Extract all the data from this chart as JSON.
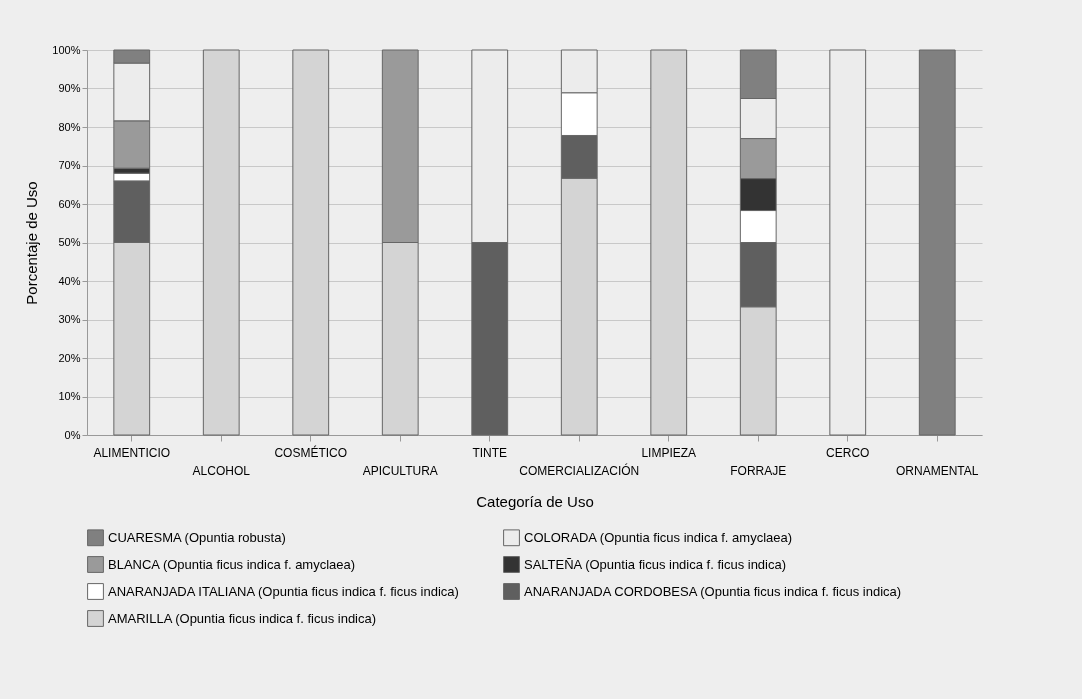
{
  "chart_data": {
    "type": "bar",
    "stacked": true,
    "xlabel": "Categoría de Uso",
    "ylabel": "Porcentaje de Uso",
    "categories": [
      "ALIMENTICIO",
      "ALCOHOL",
      "COSMÉTICO",
      "APICULTURA",
      "TINTE",
      "COMERCIALIZACIÓN",
      "LIMPIEZA",
      "FORRAJE",
      "CERCO",
      "ORNAMENTAL"
    ],
    "ylim": [
      0,
      100
    ],
    "yticks": [
      {
        "value": 0,
        "label": "0%"
      },
      {
        "value": 10,
        "label": "10%"
      },
      {
        "value": 20,
        "label": "20%"
      },
      {
        "value": 30,
        "label": "30%"
      },
      {
        "value": 40,
        "label": "40%"
      },
      {
        "value": 50,
        "label": "50%"
      },
      {
        "value": 60,
        "label": "60%"
      },
      {
        "value": 70,
        "label": "70%"
      },
      {
        "value": 80,
        "label": "80%"
      },
      {
        "value": 90,
        "label": "90%"
      },
      {
        "value": 100,
        "label": "100%"
      }
    ],
    "grid": "y",
    "legend": "bottom",
    "series": [
      {
        "name": "AMARILLA (Opuntia ficus indica f. ficus indica)",
        "color": "#d4d4d4",
        "values": [
          50,
          100,
          100,
          50,
          0,
          66.7,
          100,
          33.3,
          0,
          0
        ]
      },
      {
        "name": "ANARANJADA CORDOBESA (Opuntia ficus indica f. ficus indica)",
        "color": "#5f5f5f",
        "values": [
          16,
          0,
          0,
          0,
          50,
          11.1,
          0,
          16.7,
          0,
          0
        ]
      },
      {
        "name": "ANARANJADA ITALIANA (Opuntia ficus indica f. ficus indica)",
        "color": "#ffffff",
        "values": [
          2,
          0,
          0,
          0,
          0,
          11.1,
          0,
          8.3,
          0,
          0
        ]
      },
      {
        "name": "SALTEÑA (Opuntia ficus indica f. ficus indica)",
        "color": "#333333",
        "values": [
          1.3,
          0,
          0,
          0,
          0,
          0,
          0,
          8.3,
          0,
          0
        ]
      },
      {
        "name": "BLANCA (Opuntia ficus indica f. amyclaea)",
        "color": "#9a9a9a",
        "values": [
          12.3,
          0,
          0,
          50,
          0,
          0,
          0,
          10.4,
          0,
          0
        ]
      },
      {
        "name": "COLORADA (Opuntia ficus indica f. amyclaea)",
        "color": "#ececec",
        "values": [
          15,
          0,
          0,
          0,
          50,
          11.1,
          0,
          10.4,
          100,
          0
        ]
      },
      {
        "name": "CUARESMA (Opuntia robusta)",
        "color": "#808080",
        "values": [
          3.4,
          0,
          0,
          0,
          0,
          0,
          0,
          12.6,
          0,
          100
        ]
      }
    ]
  }
}
